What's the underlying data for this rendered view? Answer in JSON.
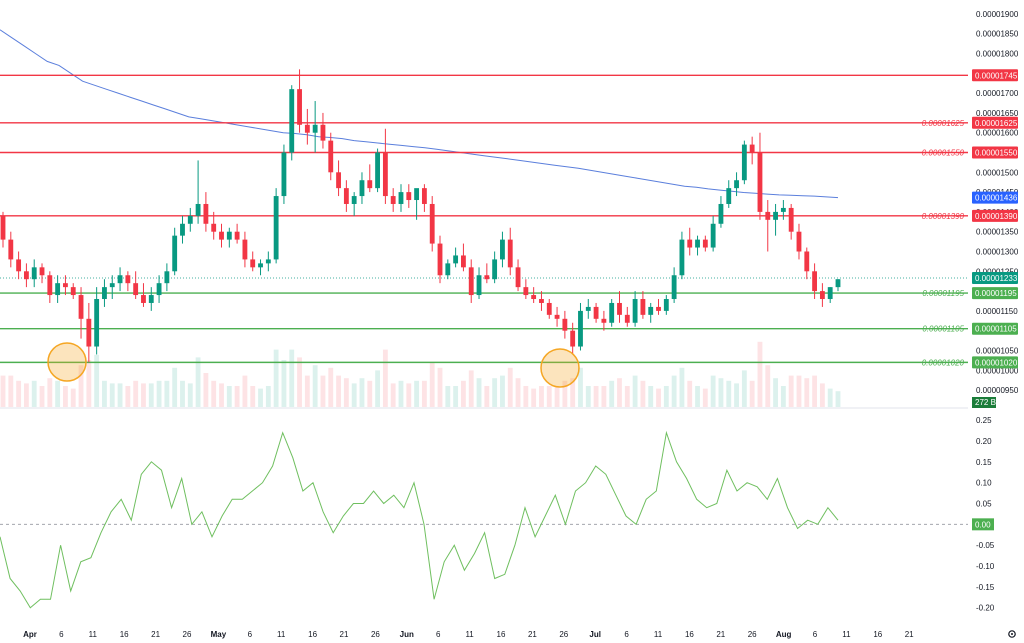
{
  "colors": {
    "up": "#089981",
    "down": "#f23645",
    "resistance": "#f23645",
    "support": "#4caf50",
    "ma": "#5b7fdc",
    "oscillator": "#6fbf5f",
    "current_price": "#089981",
    "highlight": "#f5a623"
  },
  "price_axis": {
    "ticks": [
      "0.00001900",
      "0.00001850",
      "0.00001800",
      "0.00001750",
      "0.00001700",
      "0.00001650",
      "0.00001600",
      "0.00001550",
      "0.00001500",
      "0.00001450",
      "0.00001400",
      "0.00001350",
      "0.00001300",
      "0.00001250",
      "0.00001200",
      "0.00001150",
      "0.00001100",
      "0.00001050",
      "0.00001000",
      "0.00000950"
    ]
  },
  "osc_axis": {
    "ticks": [
      "0.25",
      "0.20",
      "0.15",
      "0.10",
      "0.05",
      "-0.05",
      "-0.10",
      "-0.15",
      "-0.20"
    ]
  },
  "x_axis": {
    "labels": [
      "Apr",
      "6",
      "11",
      "16",
      "21",
      "26",
      "May",
      "6",
      "11",
      "16",
      "21",
      "26",
      "Jun",
      "6",
      "11",
      "16",
      "21",
      "26",
      "Jul",
      "6",
      "11",
      "16",
      "21",
      "26",
      "Aug",
      "6",
      "11",
      "16",
      "21"
    ]
  },
  "levels": [
    {
      "value": 1.745e-05,
      "label": "",
      "tag": "0.00001745",
      "kind": "resistance"
    },
    {
      "value": 1.625e-05,
      "label": "0.00001625",
      "tag": "0.00001625",
      "kind": "resistance"
    },
    {
      "value": 1.55e-05,
      "label": "0.00001550",
      "tag": "0.00001550",
      "kind": "resistance"
    },
    {
      "value": 1.39e-05,
      "label": "0.00001390",
      "tag": "0.00001390",
      "kind": "resistance"
    },
    {
      "value": 1.195e-05,
      "label": "0.00001195",
      "tag": "0.00001195",
      "kind": "support"
    },
    {
      "value": 1.105e-05,
      "label": "0.00001105",
      "tag": "0.00001105",
      "kind": "support"
    },
    {
      "value": 1.02e-05,
      "label": "0.00001020",
      "tag": "0.00001020",
      "kind": "support"
    }
  ],
  "ma_tag": "0.00001436",
  "current_price_tag": "0.00001233",
  "volume_tag": "272 B",
  "osc_zero_tag": "0.00",
  "chart_data": {
    "type": "candlestick",
    "price_range": [
      9.3e-06,
      1.92e-05
    ],
    "osc_range": [
      -0.22,
      0.26
    ],
    "candles_ohlc": [
      [
        1.39,
        1.4,
        1.31,
        1.33
      ],
      [
        1.33,
        1.35,
        1.26,
        1.28
      ],
      [
        1.28,
        1.3,
        1.23,
        1.25
      ],
      [
        1.25,
        1.27,
        1.21,
        1.23
      ],
      [
        1.23,
        1.28,
        1.21,
        1.26
      ],
      [
        1.26,
        1.27,
        1.22,
        1.24
      ],
      [
        1.24,
        1.25,
        1.17,
        1.19
      ],
      [
        1.19,
        1.24,
        1.17,
        1.22
      ],
      [
        1.22,
        1.24,
        1.19,
        1.21
      ],
      [
        1.21,
        1.22,
        1.18,
        1.19
      ],
      [
        1.19,
        1.21,
        1.08,
        1.13
      ],
      [
        1.13,
        1.17,
        1.02,
        1.06
      ],
      [
        1.06,
        1.21,
        1.04,
        1.18
      ],
      [
        1.18,
        1.23,
        1.16,
        1.21
      ],
      [
        1.21,
        1.24,
        1.18,
        1.22
      ],
      [
        1.22,
        1.26,
        1.2,
        1.24
      ],
      [
        1.24,
        1.25,
        1.2,
        1.22
      ],
      [
        1.22,
        1.25,
        1.18,
        1.19
      ],
      [
        1.19,
        1.22,
        1.16,
        1.17
      ],
      [
        1.17,
        1.21,
        1.15,
        1.19
      ],
      [
        1.19,
        1.24,
        1.17,
        1.22
      ],
      [
        1.22,
        1.27,
        1.2,
        1.25
      ],
      [
        1.25,
        1.36,
        1.24,
        1.34
      ],
      [
        1.34,
        1.39,
        1.32,
        1.37
      ],
      [
        1.37,
        1.41,
        1.35,
        1.39
      ],
      [
        1.39,
        1.53,
        1.37,
        1.42
      ],
      [
        1.42,
        1.45,
        1.35,
        1.37
      ],
      [
        1.37,
        1.4,
        1.33,
        1.35
      ],
      [
        1.35,
        1.37,
        1.31,
        1.33
      ],
      [
        1.33,
        1.36,
        1.31,
        1.35
      ],
      [
        1.35,
        1.37,
        1.32,
        1.33
      ],
      [
        1.33,
        1.35,
        1.26,
        1.28
      ],
      [
        1.28,
        1.3,
        1.25,
        1.26
      ],
      [
        1.26,
        1.28,
        1.24,
        1.27
      ],
      [
        1.27,
        1.3,
        1.25,
        1.28
      ],
      [
        1.28,
        1.46,
        1.27,
        1.44
      ],
      [
        1.44,
        1.57,
        1.42,
        1.55
      ],
      [
        1.55,
        1.72,
        1.53,
        1.71
      ],
      [
        1.71,
        1.76,
        1.6,
        1.62
      ],
      [
        1.62,
        1.66,
        1.57,
        1.6
      ],
      [
        1.6,
        1.68,
        1.55,
        1.62
      ],
      [
        1.62,
        1.65,
        1.56,
        1.58
      ],
      [
        1.58,
        1.6,
        1.48,
        1.5
      ],
      [
        1.5,
        1.53,
        1.44,
        1.46
      ],
      [
        1.46,
        1.48,
        1.4,
        1.42
      ],
      [
        1.42,
        1.45,
        1.39,
        1.44
      ],
      [
        1.44,
        1.5,
        1.42,
        1.48
      ],
      [
        1.48,
        1.52,
        1.45,
        1.46
      ],
      [
        1.46,
        1.56,
        1.45,
        1.55
      ],
      [
        1.55,
        1.61,
        1.42,
        1.44
      ],
      [
        1.44,
        1.46,
        1.4,
        1.42
      ],
      [
        1.42,
        1.47,
        1.4,
        1.45
      ],
      [
        1.45,
        1.47,
        1.41,
        1.43
      ],
      [
        1.43,
        1.45,
        1.38,
        1.46
      ],
      [
        1.46,
        1.47,
        1.4,
        1.42
      ],
      [
        1.42,
        1.44,
        1.3,
        1.32
      ],
      [
        1.32,
        1.34,
        1.22,
        1.24
      ],
      [
        1.24,
        1.28,
        1.23,
        1.27
      ],
      [
        1.27,
        1.31,
        1.26,
        1.29
      ],
      [
        1.29,
        1.32,
        1.25,
        1.26
      ],
      [
        1.26,
        1.28,
        1.17,
        1.19
      ],
      [
        1.19,
        1.26,
        1.18,
        1.24
      ],
      [
        1.24,
        1.27,
        1.22,
        1.23
      ],
      [
        1.23,
        1.3,
        1.22,
        1.28
      ],
      [
        1.28,
        1.35,
        1.26,
        1.33
      ],
      [
        1.33,
        1.36,
        1.24,
        1.26
      ],
      [
        1.26,
        1.28,
        1.2,
        1.21
      ],
      [
        1.21,
        1.23,
        1.18,
        1.19
      ],
      [
        1.19,
        1.21,
        1.17,
        1.18
      ],
      [
        1.18,
        1.2,
        1.15,
        1.17
      ],
      [
        1.17,
        1.18,
        1.13,
        1.14
      ],
      [
        1.14,
        1.16,
        1.11,
        1.13
      ],
      [
        1.13,
        1.15,
        1.08,
        1.1
      ],
      [
        1.1,
        1.12,
        1.04,
        1.06
      ],
      [
        1.06,
        1.17,
        1.05,
        1.15
      ],
      [
        1.15,
        1.18,
        1.13,
        1.16
      ],
      [
        1.16,
        1.17,
        1.12,
        1.13
      ],
      [
        1.13,
        1.15,
        1.1,
        1.12
      ],
      [
        1.12,
        1.18,
        1.11,
        1.17
      ],
      [
        1.17,
        1.2,
        1.12,
        1.14
      ],
      [
        1.14,
        1.16,
        1.11,
        1.12
      ],
      [
        1.12,
        1.2,
        1.11,
        1.18
      ],
      [
        1.18,
        1.2,
        1.13,
        1.14
      ],
      [
        1.14,
        1.17,
        1.12,
        1.16
      ],
      [
        1.16,
        1.18,
        1.14,
        1.15
      ],
      [
        1.15,
        1.19,
        1.14,
        1.18
      ],
      [
        1.18,
        1.26,
        1.17,
        1.24
      ],
      [
        1.24,
        1.35,
        1.23,
        1.33
      ],
      [
        1.33,
        1.36,
        1.29,
        1.31
      ],
      [
        1.31,
        1.34,
        1.29,
        1.33
      ],
      [
        1.33,
        1.34,
        1.3,
        1.31
      ],
      [
        1.31,
        1.39,
        1.3,
        1.37
      ],
      [
        1.37,
        1.44,
        1.36,
        1.42
      ],
      [
        1.42,
        1.48,
        1.41,
        1.46
      ],
      [
        1.46,
        1.5,
        1.44,
        1.48
      ],
      [
        1.48,
        1.58,
        1.47,
        1.57
      ],
      [
        1.57,
        1.59,
        1.52,
        1.55
      ],
      [
        1.55,
        1.6,
        1.38,
        1.4
      ],
      [
        1.4,
        1.43,
        1.3,
        1.38
      ],
      [
        1.38,
        1.42,
        1.34,
        1.4
      ],
      [
        1.4,
        1.43,
        1.38,
        1.41
      ],
      [
        1.41,
        1.42,
        1.33,
        1.35
      ],
      [
        1.35,
        1.37,
        1.28,
        1.3
      ],
      [
        1.3,
        1.31,
        1.23,
        1.25
      ],
      [
        1.25,
        1.27,
        1.18,
        1.2
      ],
      [
        1.2,
        1.22,
        1.16,
        1.18
      ],
      [
        1.18,
        1.21,
        1.17,
        1.21
      ],
      [
        1.21,
        1.23,
        1.2,
        1.23
      ]
    ],
    "ma_line": [
      1.86,
      1.84,
      1.82,
      1.8,
      1.78,
      1.77,
      1.75,
      1.73,
      1.72,
      1.71,
      1.7,
      1.69,
      1.68,
      1.67,
      1.66,
      1.65,
      1.64,
      1.635,
      1.63,
      1.625,
      1.62,
      1.615,
      1.61,
      1.605,
      1.6,
      1.598,
      1.595,
      1.59,
      1.588,
      1.585,
      1.58,
      1.577,
      1.574,
      1.571,
      1.568,
      1.565,
      1.562,
      1.558,
      1.554,
      1.55,
      1.546,
      1.542,
      1.538,
      1.534,
      1.53,
      1.526,
      1.522,
      1.518,
      1.514,
      1.51,
      1.505,
      1.5,
      1.495,
      1.49,
      1.485,
      1.48,
      1.475,
      1.47,
      1.465,
      1.462,
      1.458,
      1.455,
      1.452,
      1.449,
      1.447,
      1.445,
      1.443,
      1.442,
      1.441,
      1.44,
      1.438,
      1.436
    ],
    "oscillator": [
      -0.03,
      -0.13,
      -0.16,
      -0.2,
      -0.18,
      -0.18,
      -0.05,
      -0.16,
      -0.09,
      -0.08,
      -0.02,
      0.03,
      0.06,
      0.01,
      0.12,
      0.15,
      0.13,
      0.04,
      0.11,
      0.0,
      0.03,
      -0.03,
      0.02,
      0.06,
      0.06,
      0.08,
      0.1,
      0.14,
      0.22,
      0.16,
      0.08,
      0.1,
      0.03,
      -0.02,
      0.02,
      0.05,
      0.05,
      0.08,
      0.05,
      0.07,
      0.04,
      0.1,
      0.0,
      -0.18,
      -0.09,
      -0.05,
      -0.11,
      -0.07,
      -0.02,
      -0.13,
      -0.12,
      -0.05,
      0.04,
      -0.03,
      0.02,
      0.07,
      0.0,
      0.08,
      0.1,
      0.14,
      0.12,
      0.07,
      0.02,
      0.0,
      0.06,
      0.08,
      0.22,
      0.15,
      0.11,
      0.06,
      0.04,
      0.05,
      0.13,
      0.08,
      0.1,
      0.09,
      0.06,
      0.11,
      0.04,
      -0.01,
      0.01,
      0.0,
      0.04,
      0.01
    ]
  }
}
